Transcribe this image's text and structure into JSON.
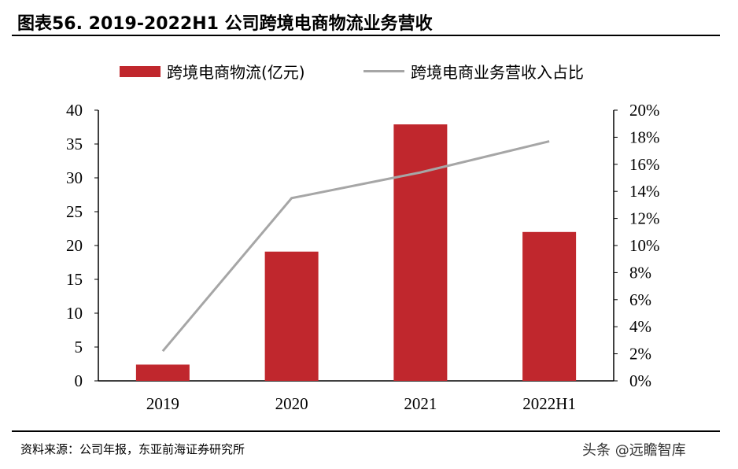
{
  "title": "图表56. 2019-2022H1 公司跨境电商物流业务营收",
  "source": "资料来源：公司年报，东亚前海证券研究所",
  "watermark": "头条 @远瞻智库",
  "chart_data": {
    "type": "bar+line",
    "categories": [
      "2019",
      "2020",
      "2021",
      "2022H1"
    ],
    "series": [
      {
        "name": "跨境电商物流(亿元)",
        "type": "bar",
        "axis": "left",
        "color": "#c0272d",
        "values": [
          2.4,
          19.1,
          37.9,
          22.0
        ]
      },
      {
        "name": "跨境电商业务营收入占比",
        "type": "line",
        "axis": "right",
        "color": "#a6a6a6",
        "values": [
          2.2,
          13.5,
          15.4,
          17.7
        ]
      }
    ],
    "ylim_left": [
      0,
      40
    ],
    "yticks_left": [
      "0",
      "5",
      "10",
      "15",
      "20",
      "25",
      "30",
      "35",
      "40"
    ],
    "ylim_right": [
      0,
      20
    ],
    "yticks_right": [
      "0%",
      "2%",
      "4%",
      "6%",
      "8%",
      "10%",
      "12%",
      "14%",
      "16%",
      "18%",
      "20%"
    ],
    "legend": "top",
    "grid": false
  }
}
